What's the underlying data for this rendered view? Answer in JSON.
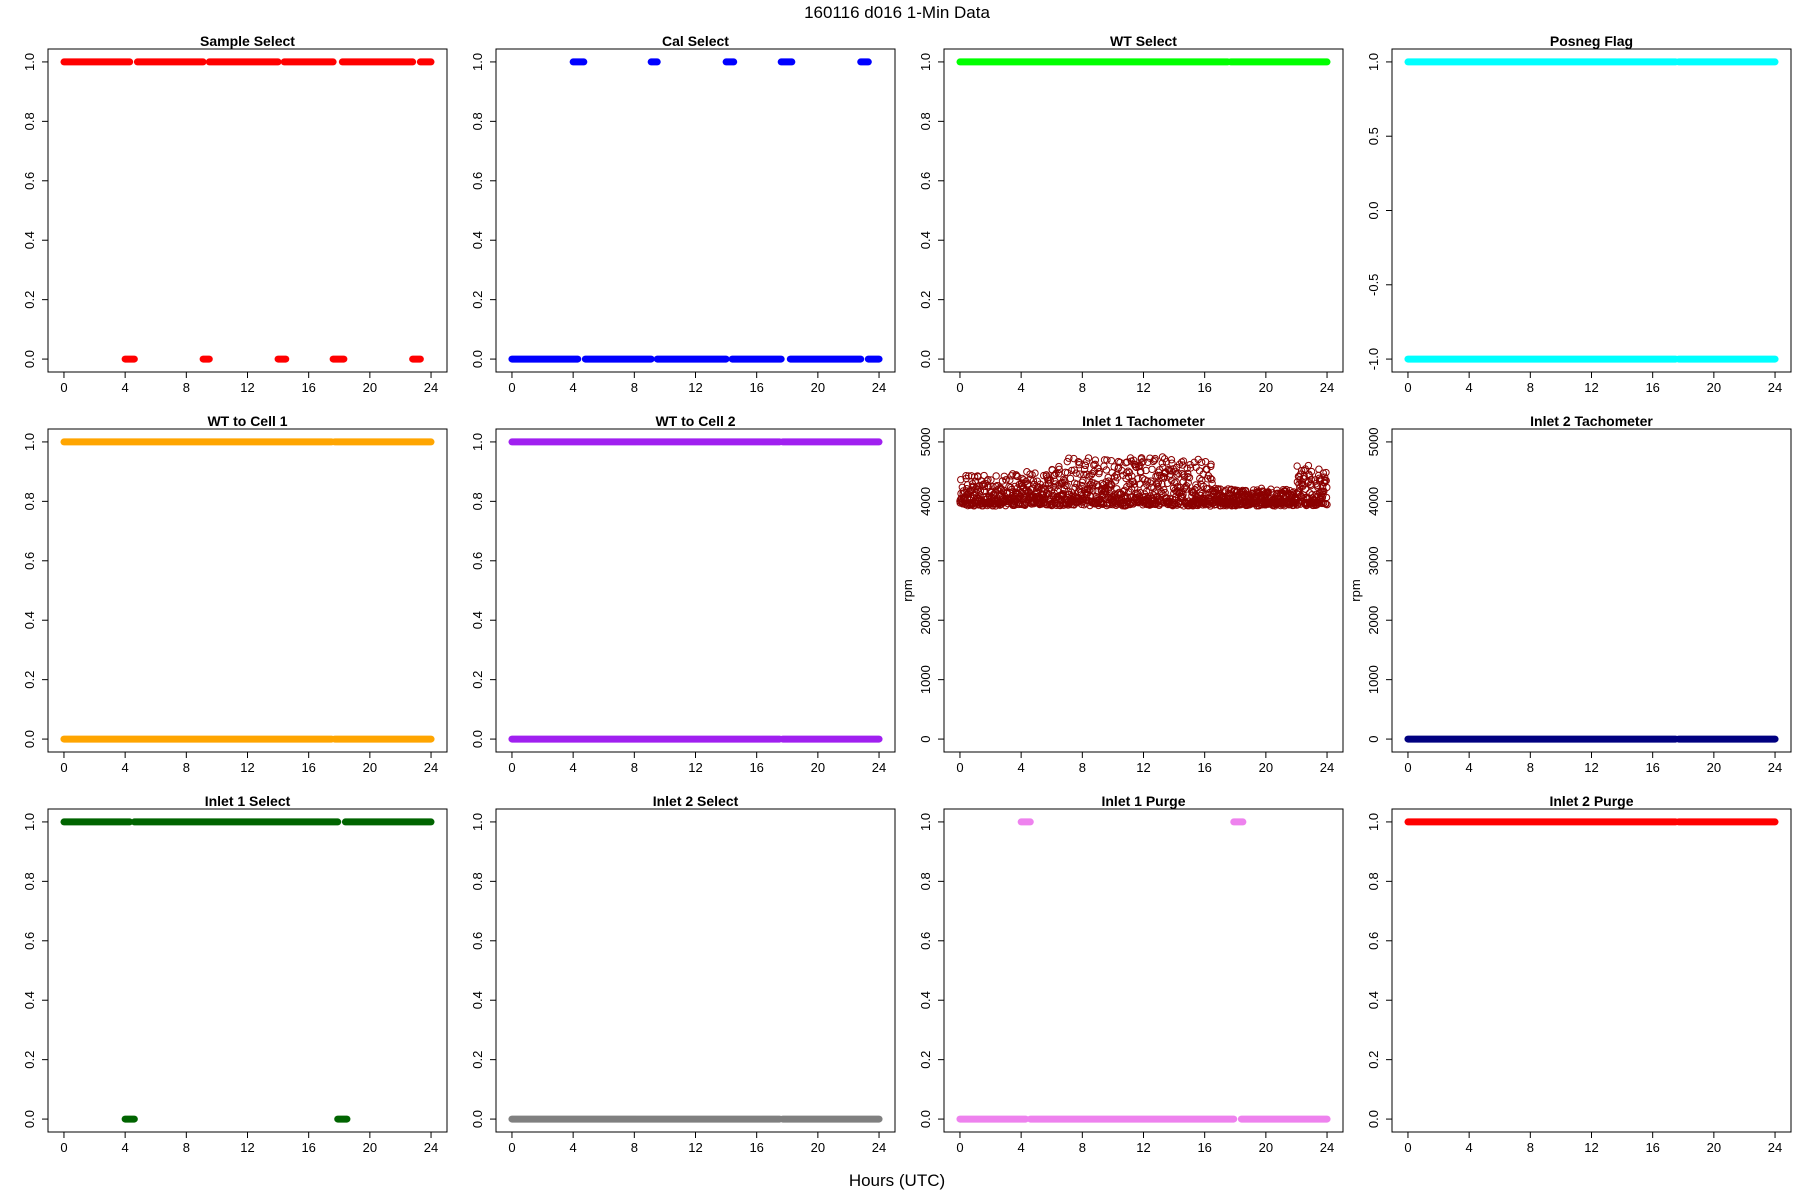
{
  "figure": {
    "title": "160116   d016   1-Min Data",
    "xlabel": "Hours (UTC)"
  },
  "chart_data": [
    {
      "type": "scatter",
      "title": "Sample Select",
      "color": "#ff0000",
      "xlim": [
        0,
        24
      ],
      "ylim": [
        0,
        1
      ],
      "xticks": [
        0,
        4,
        8,
        12,
        16,
        20,
        24
      ],
      "yticks": [
        0.0,
        0.2,
        0.4,
        0.6,
        0.8,
        1.0
      ],
      "ylabel": "",
      "marker": "filled",
      "series": [
        {
          "y": 1,
          "segments": [
            [
              0,
              4.3
            ],
            [
              4.8,
              9.1
            ],
            [
              9.5,
              14.0
            ],
            [
              14.4,
              17.6
            ],
            [
              18.2,
              22.8
            ],
            [
              23.3,
              24
            ]
          ]
        },
        {
          "y": 0,
          "segments": [
            [
              4.0,
              4.6
            ],
            [
              9.1,
              9.5
            ],
            [
              14.0,
              14.5
            ],
            [
              17.6,
              18.3
            ],
            [
              22.8,
              23.3
            ]
          ]
        }
      ]
    },
    {
      "type": "scatter",
      "title": "Cal Select",
      "color": "#0000ff",
      "xlim": [
        0,
        24
      ],
      "ylim": [
        0,
        1
      ],
      "xticks": [
        0,
        4,
        8,
        12,
        16,
        20,
        24
      ],
      "yticks": [
        0.0,
        0.2,
        0.4,
        0.6,
        0.8,
        1.0
      ],
      "ylabel": "",
      "marker": "filled",
      "series": [
        {
          "y": 1,
          "segments": [
            [
              4.0,
              4.7
            ],
            [
              9.1,
              9.5
            ],
            [
              14.0,
              14.5
            ],
            [
              17.6,
              18.3
            ],
            [
              22.8,
              23.3
            ]
          ]
        },
        {
          "y": 0,
          "segments": [
            [
              0,
              4.3
            ],
            [
              4.8,
              9.1
            ],
            [
              9.5,
              14.0
            ],
            [
              14.4,
              17.6
            ],
            [
              18.2,
              22.8
            ],
            [
              23.3,
              24
            ]
          ]
        }
      ]
    },
    {
      "type": "scatter",
      "title": "WT Select",
      "color": "#00ff00",
      "xlim": [
        0,
        24
      ],
      "ylim": [
        0,
        1
      ],
      "xticks": [
        0,
        4,
        8,
        12,
        16,
        20,
        24
      ],
      "yticks": [
        0.0,
        0.2,
        0.4,
        0.6,
        0.8,
        1.0
      ],
      "ylabel": "",
      "marker": "filled",
      "series": [
        {
          "y": 1,
          "segments": [
            [
              0,
              17.5
            ],
            [
              17.7,
              24
            ]
          ]
        }
      ]
    },
    {
      "type": "scatter",
      "title": "Posneg Flag",
      "color": "#00ffff",
      "xlim": [
        0,
        24
      ],
      "ylim": [
        -1,
        1
      ],
      "xticks": [
        0,
        4,
        8,
        12,
        16,
        20,
        24
      ],
      "yticks": [
        -1.0,
        -0.5,
        0.0,
        0.5,
        1.0
      ],
      "ylabel": "",
      "marker": "filled",
      "series": [
        {
          "y": 1,
          "segments": [
            [
              0,
              17.5
            ],
            [
              17.7,
              24
            ]
          ]
        },
        {
          "y": -1,
          "segments": [
            [
              0,
              17.5
            ],
            [
              17.7,
              24
            ]
          ]
        }
      ]
    },
    {
      "type": "scatter",
      "title": "WT to Cell 1",
      "color": "#ffa500",
      "xlim": [
        0,
        24
      ],
      "ylim": [
        0,
        1
      ],
      "xticks": [
        0,
        4,
        8,
        12,
        16,
        20,
        24
      ],
      "yticks": [
        0.0,
        0.2,
        0.4,
        0.6,
        0.8,
        1.0
      ],
      "ylabel": "",
      "marker": "filled",
      "series": [
        {
          "y": 1,
          "segments": [
            [
              0,
              17.5
            ],
            [
              17.7,
              24
            ]
          ]
        },
        {
          "y": 0,
          "segments": [
            [
              0,
              17.5
            ],
            [
              17.7,
              24
            ]
          ]
        }
      ]
    },
    {
      "type": "scatter",
      "title": "WT to Cell 2",
      "color": "#a020f0",
      "xlim": [
        0,
        24
      ],
      "ylim": [
        0,
        1
      ],
      "xticks": [
        0,
        4,
        8,
        12,
        16,
        20,
        24
      ],
      "yticks": [
        0.0,
        0.2,
        0.4,
        0.6,
        0.8,
        1.0
      ],
      "ylabel": "",
      "marker": "filled",
      "series": [
        {
          "y": 1,
          "segments": [
            [
              0,
              17.5
            ],
            [
              17.7,
              24
            ]
          ]
        },
        {
          "y": 0,
          "segments": [
            [
              0,
              17.5
            ],
            [
              17.7,
              24
            ]
          ]
        }
      ]
    },
    {
      "type": "scatter",
      "title": "Inlet 1 Tachometer",
      "color": "#8b0000",
      "xlim": [
        0,
        24
      ],
      "ylim": [
        0,
        5000
      ],
      "xticks": [
        0,
        4,
        8,
        12,
        16,
        20,
        24
      ],
      "yticks": [
        0,
        1000,
        2000,
        3000,
        4000,
        5000
      ],
      "ylabel": "rpm",
      "marker": "open",
      "noise": {
        "n": 1400,
        "baseline": 3950,
        "bands": [
          {
            "x": [
              0,
              4
            ],
            "max": 500
          },
          {
            "x": [
              4,
              7
            ],
            "max": 650
          },
          {
            "x": [
              7,
              12
            ],
            "max": 780
          },
          {
            "x": [
              12,
              16.5
            ],
            "max": 780
          },
          {
            "x": [
              16.5,
              22
            ],
            "max": 250
          },
          {
            "x": [
              22,
              24
            ],
            "max": 650
          }
        ]
      }
    },
    {
      "type": "scatter",
      "title": "Inlet 2 Tachometer",
      "color": "#000080",
      "xlim": [
        0,
        24
      ],
      "ylim": [
        0,
        5000
      ],
      "xticks": [
        0,
        4,
        8,
        12,
        16,
        20,
        24
      ],
      "yticks": [
        0,
        1000,
        2000,
        3000,
        4000,
        5000
      ],
      "ylabel": "rpm",
      "marker": "filled",
      "series": [
        {
          "y": 0,
          "segments": [
            [
              0,
              17.5
            ],
            [
              17.7,
              24
            ]
          ]
        }
      ]
    },
    {
      "type": "scatter",
      "title": "Inlet 1 Select",
      "color": "#006400",
      "xlim": [
        0,
        24
      ],
      "ylim": [
        0,
        1
      ],
      "xticks": [
        0,
        4,
        8,
        12,
        16,
        20,
        24
      ],
      "yticks": [
        0.0,
        0.2,
        0.4,
        0.6,
        0.8,
        1.0
      ],
      "ylabel": "",
      "marker": "filled",
      "series": [
        {
          "y": 1,
          "segments": [
            [
              0,
              4.3
            ],
            [
              4.6,
              17.9
            ],
            [
              18.4,
              24
            ]
          ]
        },
        {
          "y": 0,
          "segments": [
            [
              4.0,
              4.6
            ],
            [
              17.9,
              18.5
            ]
          ]
        }
      ]
    },
    {
      "type": "scatter",
      "title": "Inlet 2 Select",
      "color": "#808080",
      "xlim": [
        0,
        24
      ],
      "ylim": [
        0,
        1
      ],
      "xticks": [
        0,
        4,
        8,
        12,
        16,
        20,
        24
      ],
      "yticks": [
        0.0,
        0.2,
        0.4,
        0.6,
        0.8,
        1.0
      ],
      "ylabel": "",
      "marker": "filled",
      "series": [
        {
          "y": 0,
          "segments": [
            [
              0,
              17.5
            ],
            [
              17.7,
              24
            ]
          ]
        }
      ]
    },
    {
      "type": "scatter",
      "title": "Inlet 1 Purge",
      "color": "#ee82ee",
      "xlim": [
        0,
        24
      ],
      "ylim": [
        0,
        1
      ],
      "xticks": [
        0,
        4,
        8,
        12,
        16,
        20,
        24
      ],
      "yticks": [
        0.0,
        0.2,
        0.4,
        0.6,
        0.8,
        1.0
      ],
      "ylabel": "",
      "marker": "filled",
      "series": [
        {
          "y": 1,
          "segments": [
            [
              4.0,
              4.6
            ],
            [
              17.9,
              18.5
            ]
          ]
        },
        {
          "y": 0,
          "segments": [
            [
              0,
              4.3
            ],
            [
              4.6,
              17.9
            ],
            [
              18.4,
              24
            ]
          ]
        }
      ]
    },
    {
      "type": "scatter",
      "title": "Inlet 2 Purge",
      "color": "#ff0000",
      "xlim": [
        0,
        24
      ],
      "ylim": [
        0,
        1
      ],
      "xticks": [
        0,
        4,
        8,
        12,
        16,
        20,
        24
      ],
      "yticks": [
        0.0,
        0.2,
        0.4,
        0.6,
        0.8,
        1.0
      ],
      "ylabel": "",
      "marker": "filled",
      "series": [
        {
          "y": 1,
          "segments": [
            [
              0,
              17.5
            ],
            [
              17.7,
              24
            ]
          ]
        }
      ]
    }
  ]
}
